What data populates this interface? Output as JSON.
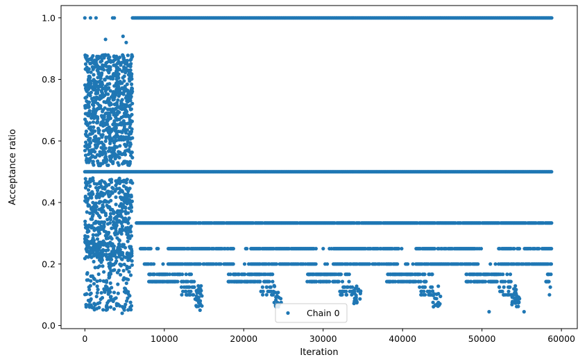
{
  "chart_data": {
    "type": "scatter",
    "xlabel": "Iteration",
    "ylabel": "Acceptance ratio",
    "xlim": [
      -3000,
      62000
    ],
    "ylim": [
      -0.01,
      1.04
    ],
    "xticks": [
      0,
      10000,
      20000,
      30000,
      40000,
      50000,
      60000
    ],
    "xtick_labels": [
      "0",
      "10000",
      "20000",
      "30000",
      "40000",
      "50000",
      "60000"
    ],
    "yticks": [
      0.0,
      0.2,
      0.4,
      0.6,
      0.8,
      1.0
    ],
    "ytick_labels": [
      "0.0",
      "0.2",
      "0.4",
      "0.6",
      "0.8",
      "1.0"
    ],
    "grid": false,
    "legend": {
      "placement": "bottom-center",
      "entries": [
        "Chain 0"
      ]
    },
    "series": [
      {
        "name": "Chain 0",
        "color": "#1f77b4",
        "x_range": [
          0,
          58800
        ],
        "bands": [
          {
            "y": 1.0,
            "x_start": 6000,
            "x_end": 58800
          },
          {
            "y": 0.5,
            "x_start": 0,
            "x_end": 58800
          },
          {
            "y": 0.3333,
            "x_start": 6500,
            "x_end": 58800
          },
          {
            "y": 0.25,
            "x_start": 7000,
            "x_end": 58800
          },
          {
            "y": 0.2,
            "x_start": 7500,
            "x_end": 58800
          }
        ],
        "burn_in_cloud": {
          "x_range": [
            0,
            6000
          ],
          "y_range": [
            0.04,
            0.94
          ]
        },
        "sample_points": [
          {
            "x": 0,
            "y": 1.0
          },
          {
            "x": 700,
            "y": 1.0
          },
          {
            "x": 1400,
            "y": 1.0
          },
          {
            "x": 3500,
            "y": 1.0
          },
          {
            "x": 3700,
            "y": 1.0
          },
          {
            "x": 4800,
            "y": 0.94
          },
          {
            "x": 2600,
            "y": 0.93
          },
          {
            "x": 5200,
            "y": 0.92
          },
          {
            "x": 600,
            "y": 0.06
          },
          {
            "x": 1500,
            "y": 0.055
          },
          {
            "x": 4700,
            "y": 0.04
          },
          {
            "x": 5000,
            "y": 0.06
          },
          {
            "x": 14500,
            "y": 0.05
          },
          {
            "x": 50900,
            "y": 0.045
          },
          {
            "x": 55300,
            "y": 0.045
          },
          {
            "x": 58500,
            "y": 0.1
          },
          {
            "x": 58600,
            "y": 0.125
          }
        ]
      }
    ]
  }
}
